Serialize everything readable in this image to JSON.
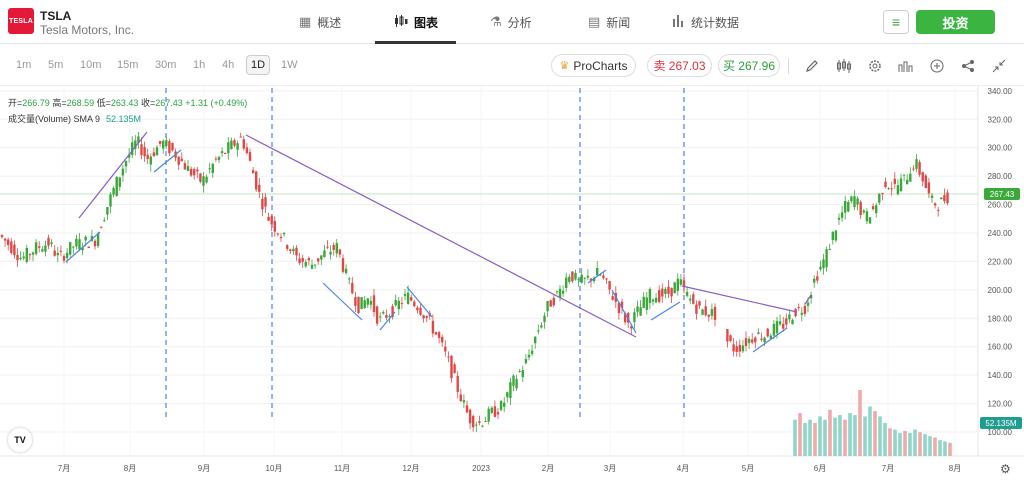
{
  "header": {
    "logo_text": "TESLA",
    "symbol": "TSLA",
    "company": "Tesla Motors, Inc.",
    "nav": [
      {
        "label": "概述",
        "icon": "grid-icon"
      },
      {
        "label": "图表",
        "icon": "candles-icon"
      },
      {
        "label": "分析",
        "icon": "flask-icon"
      },
      {
        "label": "新闻",
        "icon": "newspaper-icon"
      },
      {
        "label": "统计数据",
        "icon": "bar-stats-icon"
      }
    ],
    "invest_label": "投资"
  },
  "toolbar": {
    "timeframes": [
      "1m",
      "5m",
      "10m",
      "15m",
      "30m",
      "1h",
      "4h",
      "1D",
      "1W"
    ],
    "active_timeframe": "1D",
    "procharts_label": "ProCharts",
    "sell_label": "卖 267.03",
    "buy_label": "买 267.96"
  },
  "legend": {
    "open_label": "开=",
    "open": "266.79",
    "high_label": "高=",
    "high": "268.59",
    "low_label": "低=",
    "low": "263.43",
    "close_label": "收=",
    "close": "267.43",
    "change": "+1.31 (+0.49%)",
    "volume_label": "成交量(Volume) SMA 9",
    "volume_value": "52.135M"
  },
  "colors": {
    "up": "#3aa83a",
    "down": "#e04848",
    "vol_up": "#8fd6c9",
    "vol_down": "#f2a9a9",
    "trend_blue": "#4a86e8",
    "trend_purple": "#8a5cc8",
    "price_line": "#3aa83a"
  },
  "chart_data": {
    "type": "candlestick",
    "y_axis_ticks": [
      "340.00",
      "320.00",
      "300.00",
      "280.00",
      "260.00",
      "240.00",
      "220.00",
      "200.00",
      "180.00",
      "160.00",
      "140.00",
      "120.00",
      "100.00"
    ],
    "x_axis_ticks": [
      "7月",
      "8月",
      "9月",
      "10月",
      "11月",
      "12月",
      "2023",
      "2月",
      "3月",
      "4月",
      "5月",
      "6月",
      "7月",
      "8月"
    ],
    "ylim": [
      92,
      342
    ],
    "last_price": "267.43",
    "volume_last": "52.135M",
    "price_path": [
      [
        0,
        240
      ],
      [
        12,
        232
      ],
      [
        25,
        222
      ],
      [
        40,
        230
      ],
      [
        52,
        233
      ],
      [
        62,
        222
      ],
      [
        78,
        232
      ],
      [
        98,
        235
      ],
      [
        112,
        262
      ],
      [
        128,
        290
      ],
      [
        140,
        305
      ],
      [
        150,
        292
      ],
      [
        165,
        304
      ],
      [
        178,
        296
      ],
      [
        192,
        284
      ],
      [
        205,
        276
      ],
      [
        218,
        290
      ],
      [
        232,
        300
      ],
      [
        245,
        307
      ],
      [
        255,
        285
      ],
      [
        262,
        268
      ],
      [
        272,
        250
      ],
      [
        285,
        238
      ],
      [
        300,
        222
      ],
      [
        315,
        218
      ],
      [
        328,
        226
      ],
      [
        340,
        230
      ],
      [
        352,
        204
      ],
      [
        362,
        188
      ],
      [
        372,
        195
      ],
      [
        382,
        178
      ],
      [
        396,
        186
      ],
      [
        410,
        196
      ],
      [
        422,
        188
      ],
      [
        432,
        178
      ],
      [
        442,
        165
      ],
      [
        452,
        148
      ],
      [
        462,
        128
      ],
      [
        472,
        110
      ],
      [
        482,
        106
      ],
      [
        492,
        112
      ],
      [
        505,
        118
      ],
      [
        517,
        136
      ],
      [
        530,
        150
      ],
      [
        540,
        170
      ],
      [
        552,
        190
      ],
      [
        562,
        198
      ],
      [
        572,
        212
      ],
      [
        582,
        205
      ],
      [
        592,
        208
      ],
      [
        602,
        212
      ],
      [
        612,
        200
      ],
      [
        622,
        188
      ],
      [
        632,
        175
      ],
      [
        642,
        186
      ],
      [
        652,
        196
      ],
      [
        662,
        196
      ],
      [
        672,
        198
      ],
      [
        682,
        206
      ],
      [
        692,
        194
      ],
      [
        702,
        186
      ],
      [
        712,
        184
      ],
      [
        722,
        182
      ],
      [
        728,
        166
      ],
      [
        738,
        158
      ],
      [
        748,
        163
      ],
      [
        758,
        168
      ],
      [
        768,
        168
      ],
      [
        778,
        173
      ],
      [
        788,
        176
      ],
      [
        798,
        185
      ],
      [
        808,
        188
      ],
      [
        818,
        208
      ],
      [
        828,
        222
      ],
      [
        838,
        243
      ],
      [
        848,
        258
      ],
      [
        858,
        265
      ],
      [
        868,
        250
      ],
      [
        878,
        258
      ],
      [
        888,
        276
      ],
      [
        898,
        272
      ],
      [
        908,
        278
      ],
      [
        918,
        290
      ],
      [
        926,
        278
      ],
      [
        934,
        262
      ],
      [
        942,
        260
      ],
      [
        950,
        266
      ]
    ],
    "volume_profile": [
      [
        795,
        0.55
      ],
      [
        800,
        0.65
      ],
      [
        805,
        0.5
      ],
      [
        810,
        0.55
      ],
      [
        815,
        0.5
      ],
      [
        820,
        0.6
      ],
      [
        825,
        0.55
      ],
      [
        830,
        0.7
      ],
      [
        835,
        0.58
      ],
      [
        840,
        0.62
      ],
      [
        845,
        0.55
      ],
      [
        850,
        0.65
      ],
      [
        855,
        0.62
      ],
      [
        860,
        1.0
      ],
      [
        865,
        0.6
      ],
      [
        870,
        0.75
      ],
      [
        875,
        0.68
      ],
      [
        880,
        0.6
      ],
      [
        885,
        0.5
      ],
      [
        890,
        0.42
      ],
      [
        895,
        0.4
      ],
      [
        900,
        0.35
      ],
      [
        905,
        0.38
      ],
      [
        910,
        0.35
      ],
      [
        915,
        0.4
      ],
      [
        920,
        0.36
      ],
      [
        925,
        0.33
      ],
      [
        930,
        0.3
      ],
      [
        935,
        0.28
      ],
      [
        940,
        0.24
      ],
      [
        945,
        0.22
      ],
      [
        950,
        0.2
      ]
    ]
  }
}
